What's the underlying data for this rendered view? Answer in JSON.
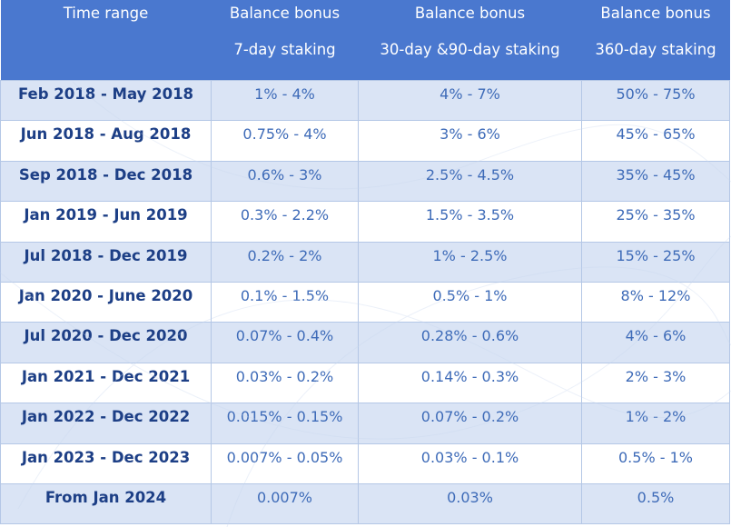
{
  "header": {
    "col0": {
      "line1": "Time range",
      "line2": ""
    },
    "col1": {
      "line1": "Balance bonus",
      "line2": "7-day staking"
    },
    "col2": {
      "line1": "Balance bonus",
      "line2": "30-day &90-day staking"
    },
    "col3": {
      "line1": "Balance bonus",
      "line2": "360-day staking"
    }
  },
  "rows": [
    {
      "time": "Feb 2018 - May 2018",
      "d7": "1% - 4%",
      "d30": "4% - 7%",
      "d360": "50% - 75%"
    },
    {
      "time": "Jun 2018 - Aug 2018",
      "d7": "0.75% - 4%",
      "d30": "3% - 6%",
      "d360": "45% - 65%"
    },
    {
      "time": "Sep 2018 - Dec 2018",
      "d7": "0.6% - 3%",
      "d30": "2.5% - 4.5%",
      "d360": "35% - 45%"
    },
    {
      "time": "Jan 2019 - Jun 2019",
      "d7": "0.3% - 2.2%",
      "d30": "1.5% - 3.5%",
      "d360": "25% - 35%"
    },
    {
      "time": "Jul 2018 - Dec 2019",
      "d7": "0.2% - 2%",
      "d30": "1% - 2.5%",
      "d360": "15% - 25%"
    },
    {
      "time": "Jan 2020 - June 2020",
      "d7": "0.1% - 1.5%",
      "d30": "0.5% - 1%",
      "d360": "8% - 12%"
    },
    {
      "time": "Jul 2020 - Dec 2020",
      "d7": "0.07% - 0.4%",
      "d30": "0.28% - 0.6%",
      "d360": "4% - 6%"
    },
    {
      "time": "Jan 2021 - Dec 2021",
      "d7": "0.03% - 0.2%",
      "d30": "0.14% - 0.3%",
      "d360": "2% - 3%"
    },
    {
      "time": "Jan 2022 - Dec 2022",
      "d7": "0.015% - 0.15%",
      "d30": "0.07% - 0.2%",
      "d360": "1% - 2%"
    },
    {
      "time": "Jan 2023 - Dec 2023",
      "d7": "0.007% - 0.05%",
      "d30": "0.03% - 0.1%",
      "d360": "0.5% - 1%"
    },
    {
      "time": "From Jan 2024",
      "d7": "0.007%",
      "d30": "0.03%",
      "d360": "0.5%"
    }
  ],
  "colors": {
    "header_bg": "#4a78cf",
    "header_text": "#ffffff",
    "row_shade": "#dae4f5",
    "row_plain": "#ffffff",
    "time_text": "#1d3f86",
    "value_text": "#3e6bb8",
    "grid_line": "#b4c7e6"
  }
}
